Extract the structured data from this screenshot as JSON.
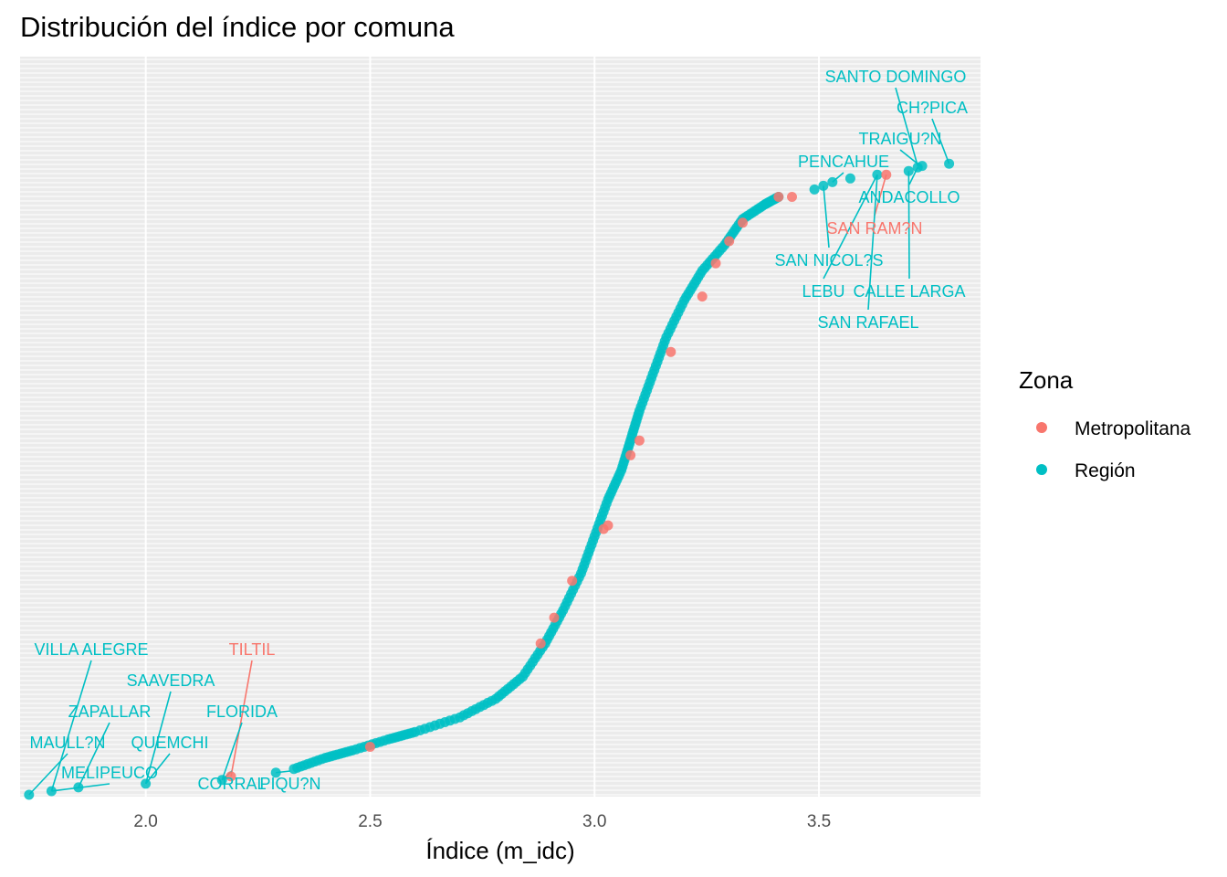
{
  "chart_data": {
    "type": "scatter",
    "title": "Distribución del índice por comuna",
    "xlabel": "Índice (m_idc)",
    "ylabel": "",
    "xlim": [
      1.72,
      3.86
    ],
    "ylim": [
      0,
      1
    ],
    "x_ticks": [
      "2.0",
      "2.5",
      "3.0",
      "3.5"
    ],
    "grid": true,
    "legend": {
      "title": "Zona",
      "position": "right",
      "entries": [
        {
          "name": "Metropolitana",
          "color": "#F8766D"
        },
        {
          "name": "Región",
          "color": "#00BFC4"
        }
      ]
    },
    "series": [
      {
        "name": "Metropolitana",
        "color": "#F8766D",
        "points": [
          [
            2.19,
            0.025
          ],
          [
            2.5,
            0.065
          ],
          [
            2.88,
            0.205
          ],
          [
            2.91,
            0.24
          ],
          [
            2.95,
            0.29
          ],
          [
            3.02,
            0.36
          ],
          [
            3.03,
            0.365
          ],
          [
            3.08,
            0.46
          ],
          [
            3.1,
            0.48
          ],
          [
            3.17,
            0.6
          ],
          [
            3.24,
            0.675
          ],
          [
            3.27,
            0.72
          ],
          [
            3.3,
            0.75
          ],
          [
            3.33,
            0.775
          ],
          [
            3.41,
            0.81
          ],
          [
            3.44,
            0.81
          ],
          [
            3.65,
            0.84
          ]
        ]
      },
      {
        "name": "Región",
        "color": "#00BFC4"
      }
    ],
    "region_curve": [
      [
        2.33,
        0.035
      ],
      [
        2.4,
        0.05
      ],
      [
        2.46,
        0.06
      ],
      [
        2.54,
        0.075
      ],
      [
        2.6,
        0.085
      ],
      [
        2.7,
        0.105
      ],
      [
        2.78,
        0.13
      ],
      [
        2.84,
        0.16
      ],
      [
        2.89,
        0.205
      ],
      [
        2.93,
        0.25
      ],
      [
        2.97,
        0.3
      ],
      [
        3.0,
        0.35
      ],
      [
        3.03,
        0.4
      ],
      [
        3.06,
        0.44
      ],
      [
        3.08,
        0.48
      ],
      [
        3.1,
        0.52
      ],
      [
        3.13,
        0.57
      ],
      [
        3.16,
        0.62
      ],
      [
        3.2,
        0.67
      ],
      [
        3.24,
        0.71
      ],
      [
        3.29,
        0.745
      ],
      [
        3.33,
        0.78
      ],
      [
        3.38,
        0.8
      ],
      [
        3.41,
        0.81
      ]
    ],
    "region_isolated": [
      [
        1.74,
        0.0
      ],
      [
        1.79,
        0.005
      ],
      [
        1.85,
        0.01
      ],
      [
        2.0,
        0.015
      ],
      [
        2.17,
        0.02
      ],
      [
        2.29,
        0.03
      ],
      [
        3.49,
        0.82
      ],
      [
        3.51,
        0.825
      ],
      [
        3.53,
        0.83
      ],
      [
        3.57,
        0.835
      ],
      [
        3.63,
        0.84
      ],
      [
        3.7,
        0.845
      ],
      [
        3.72,
        0.85
      ],
      [
        3.73,
        0.852
      ],
      [
        3.79,
        0.855
      ]
    ],
    "annotations": [
      {
        "label": "SANTO DOMINGO",
        "zone": "Región",
        "x": 3.72,
        "y": 0.852
      },
      {
        "label": "CH?PICA",
        "zone": "Región",
        "x": 3.79,
        "y": 0.855
      },
      {
        "label": "TRAIGU?N",
        "zone": "Región",
        "x": 3.73,
        "y": 0.85
      },
      {
        "label": "PENCAHUE",
        "zone": "Región",
        "x": 3.53,
        "y": 0.83
      },
      {
        "label": "ANDACOLLO",
        "zone": "Región",
        "x": 3.72,
        "y": 0.85
      },
      {
        "label": "SAN RAM?N",
        "zone": "Metropolitana",
        "x": 3.65,
        "y": 0.84
      },
      {
        "label": "SAN NICOL?S",
        "zone": "Región",
        "x": 3.51,
        "y": 0.825
      },
      {
        "label": "LEBU",
        "zone": "Región",
        "x": 3.63,
        "y": 0.84
      },
      {
        "label": "CALLE LARGA",
        "zone": "Región",
        "x": 3.7,
        "y": 0.845
      },
      {
        "label": "SAN RAFAEL",
        "zone": "Región",
        "x": 3.63,
        "y": 0.84
      },
      {
        "label": "VILLA ALEGRE",
        "zone": "Región",
        "x": 1.79,
        "y": 0.005
      },
      {
        "label": "TILTIL",
        "zone": "Metropolitana",
        "x": 2.19,
        "y": 0.025
      },
      {
        "label": "SAAVEDRA",
        "zone": "Región",
        "x": 2.0,
        "y": 0.015
      },
      {
        "label": "ZAPALLAR",
        "zone": "Región",
        "x": 1.85,
        "y": 0.01
      },
      {
        "label": "FLORIDA",
        "zone": "Región",
        "x": 2.17,
        "y": 0.02
      },
      {
        "label": "MAULL?N",
        "zone": "Región",
        "x": 1.74,
        "y": 0.0
      },
      {
        "label": "QUEMCHI",
        "zone": "Región",
        "x": 2.0,
        "y": 0.015
      },
      {
        "label": "MELIPEUCO",
        "zone": "Región",
        "x": 1.79,
        "y": 0.005
      },
      {
        "label": "CORRAL",
        "zone": "Región",
        "x": 2.17,
        "y": 0.02
      },
      {
        "label": "PIQU?N",
        "zone": "Región",
        "x": 2.29,
        "y": 0.03
      }
    ]
  }
}
